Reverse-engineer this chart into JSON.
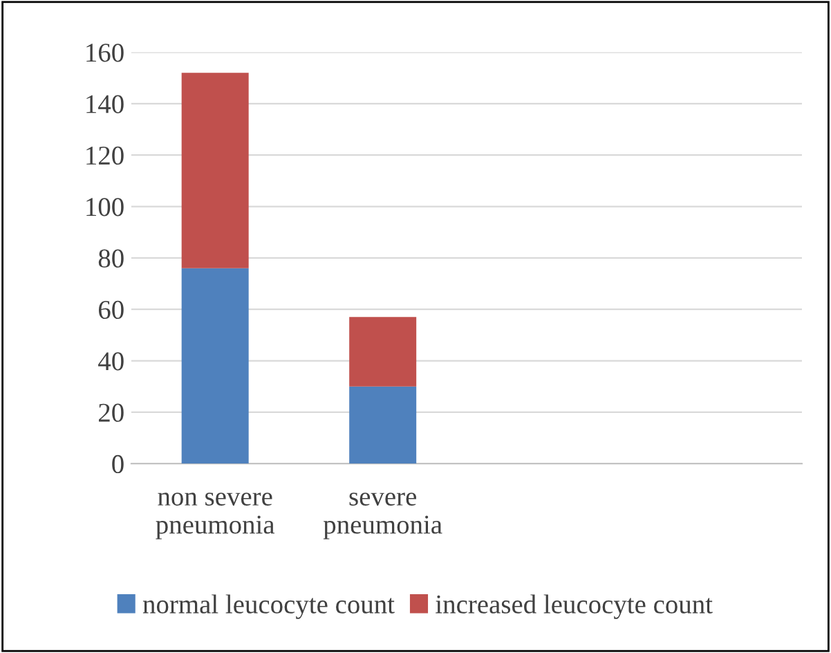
{
  "chart_data": {
    "type": "bar",
    "stacked": true,
    "categories": [
      "non severe\npneumonia",
      "severe\npneumonia",
      null,
      null
    ],
    "series": [
      {
        "name": "normal leucocyte count",
        "color": "#4f81bd",
        "values": [
          76,
          30,
          null,
          null
        ]
      },
      {
        "name": "increased leucocyte count",
        "color": "#c0504d",
        "values": [
          76,
          27,
          null,
          null
        ]
      }
    ],
    "ylim": [
      0,
      160
    ],
    "yticks": [
      0,
      20,
      40,
      60,
      80,
      100,
      120,
      140,
      160
    ],
    "grid": "y",
    "legend": "bottom"
  }
}
